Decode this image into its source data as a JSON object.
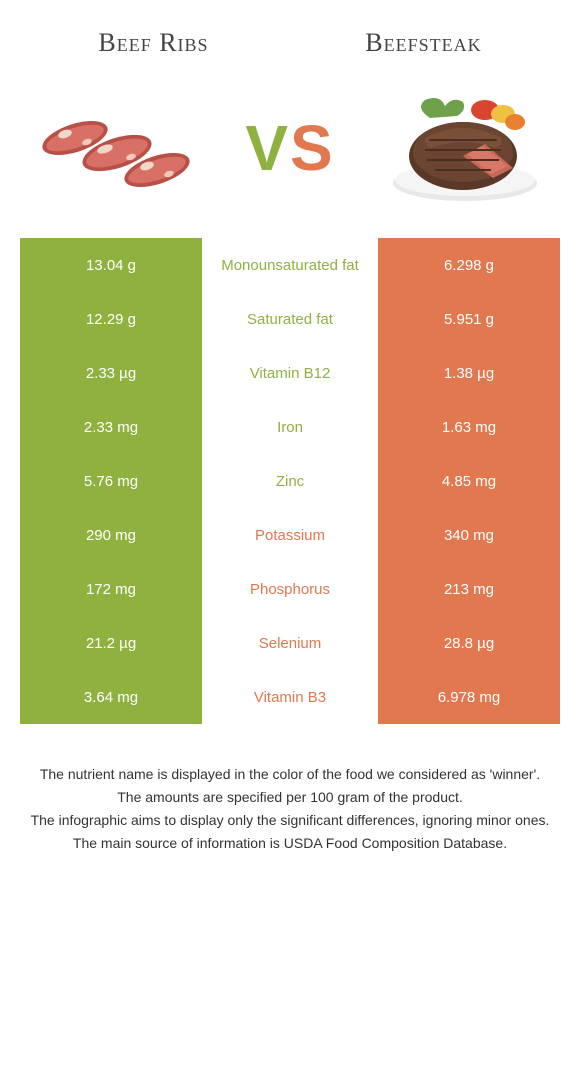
{
  "header": {
    "left_title": "Beef Ribs",
    "right_title": "Beefsteak"
  },
  "vs": {
    "v": "V",
    "s": "S"
  },
  "colors": {
    "green": "#8fb140",
    "orange": "#e2784f",
    "white": "#ffffff",
    "text": "#333333"
  },
  "rows": [
    {
      "left": "13.04 g",
      "label": "Monounsaturated fat",
      "right": "6.298 g",
      "winner": "left"
    },
    {
      "left": "12.29 g",
      "label": "Saturated fat",
      "right": "5.951 g",
      "winner": "left"
    },
    {
      "left": "2.33 µg",
      "label": "Vitamin B12",
      "right": "1.38 µg",
      "winner": "left"
    },
    {
      "left": "2.33 mg",
      "label": "Iron",
      "right": "1.63 mg",
      "winner": "left"
    },
    {
      "left": "5.76 mg",
      "label": "Zinc",
      "right": "4.85 mg",
      "winner": "left"
    },
    {
      "left": "290 mg",
      "label": "Potassium",
      "right": "340 mg",
      "winner": "right"
    },
    {
      "left": "172 mg",
      "label": "Phosphorus",
      "right": "213 mg",
      "winner": "right"
    },
    {
      "left": "21.2 µg",
      "label": "Selenium",
      "right": "28.8 µg",
      "winner": "right"
    },
    {
      "left": "3.64 mg",
      "label": "Vitamin B3",
      "right": "6.978 mg",
      "winner": "right"
    }
  ],
  "footer": {
    "line1": "The nutrient name is displayed in the color of the food we considered as 'winner'.",
    "line2": "The amounts are specified per 100 gram of the product.",
    "line3": "The infographic aims to display only the significant differences, ignoring minor ones.",
    "line4": "The main source of information is USDA Food Composition Database."
  }
}
